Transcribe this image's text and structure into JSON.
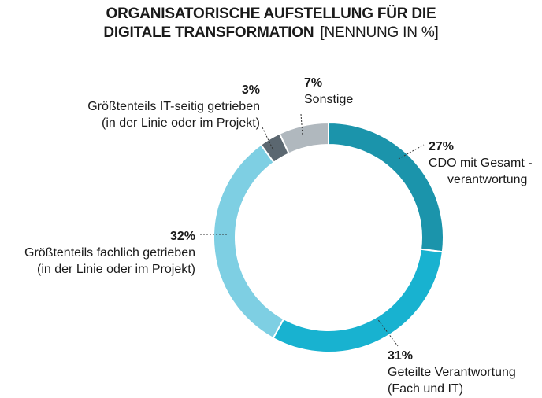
{
  "title_line1": "ORGANISATORISCHE AUFSTELLUNG FÜR DIE",
  "title_line2": "DIGITALE TRANSFORMATION",
  "title_unit": "[NENNUNG IN %]",
  "colors": {
    "cdo": "#1b94ab",
    "geteilt": "#18b2d0",
    "fachlich": "#7ecfe3",
    "it": "#5b6770",
    "sonstige": "#b0b8be"
  },
  "chart_data": {
    "type": "pie",
    "donut": true,
    "title": "ORGANISATORISCHE AUFSTELLUNG FÜR DIE DIGITALE TRANSFORMATION",
    "unit": "[NENNUNG IN %]",
    "slices": [
      {
        "key": "cdo",
        "value": 27,
        "pct_label": "27%",
        "label_line1": "CDO mit Gesamt -",
        "label_line2": "verantwortung"
      },
      {
        "key": "geteilt",
        "value": 31,
        "pct_label": "31%",
        "label_line1": "Geteilte Verantwortung",
        "label_line2": "(Fach und IT)"
      },
      {
        "key": "fachlich",
        "value": 32,
        "pct_label": "32%",
        "label_line1": "Größtenteils fachlich getrieben",
        "label_line2": "(in der Linie oder im Projekt)"
      },
      {
        "key": "it",
        "value": 3,
        "pct_label": "3%",
        "label_line1": "Größtenteils IT-seitig getrieben",
        "label_line2": "(in der Linie oder im Projekt)"
      },
      {
        "key": "sonstige",
        "value": 7,
        "pct_label": "7%",
        "label_line1": "Sonstige",
        "label_line2": ""
      }
    ]
  }
}
